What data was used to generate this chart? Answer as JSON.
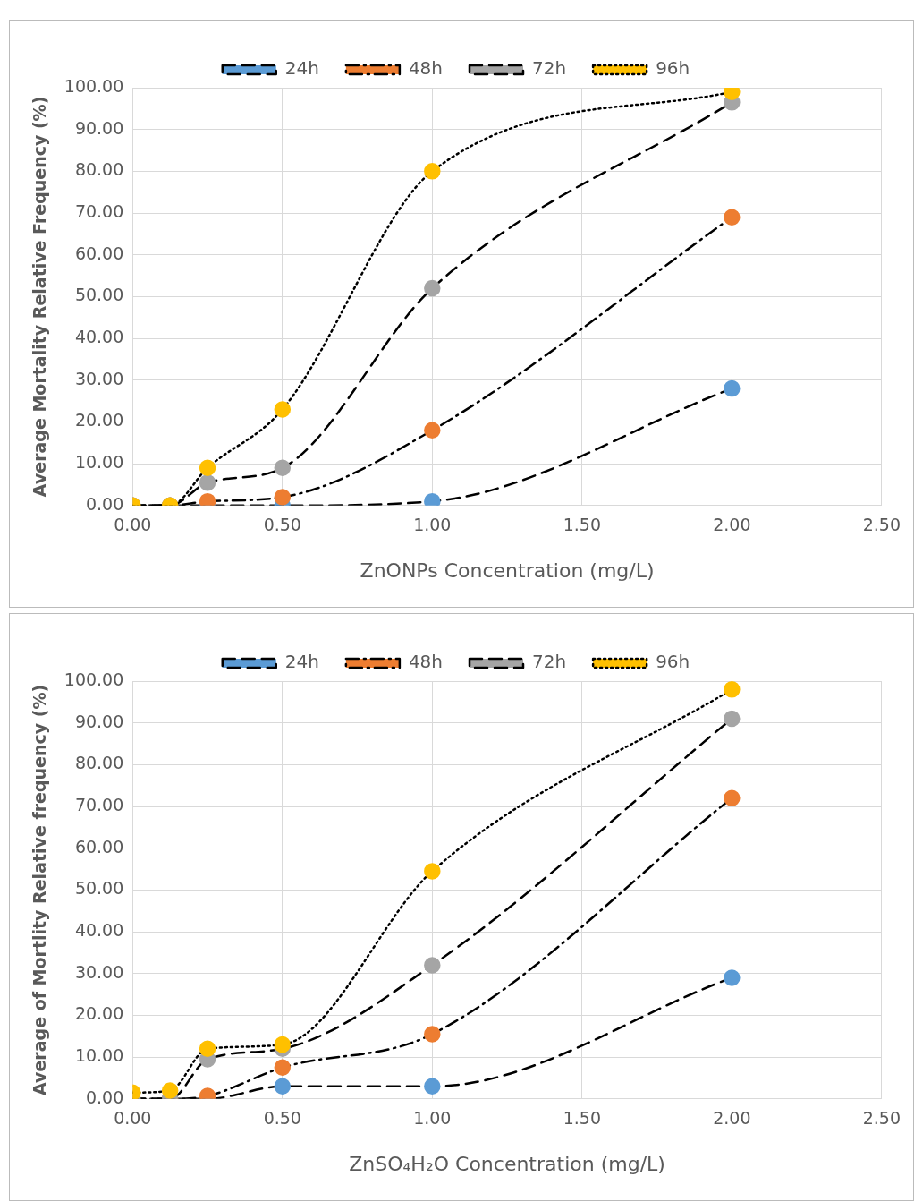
{
  "chart_data": [
    {
      "type": "line",
      "xlabel": "ZnONPs Concentration (mg/L)",
      "ylabel": "Average Mortality Relative Frequency (%)",
      "x": [
        0,
        0.125,
        0.25,
        0.5,
        1,
        2
      ],
      "xlim": [
        0,
        2.5
      ],
      "xticks": [
        {
          "value": 0,
          "label": "0.00"
        },
        {
          "value": 0.5,
          "label": "0.50"
        },
        {
          "value": 1,
          "label": "1.00"
        },
        {
          "value": 1.5,
          "label": "1.50"
        },
        {
          "value": 2,
          "label": "2.00"
        },
        {
          "value": 2.5,
          "label": "2.50"
        }
      ],
      "ylim": [
        0,
        100
      ],
      "yticks": [
        {
          "value": 0,
          "label": "0.00"
        },
        {
          "value": 10,
          "label": "10.00"
        },
        {
          "value": 20,
          "label": "20.00"
        },
        {
          "value": 30,
          "label": "30.00"
        },
        {
          "value": 40,
          "label": "40.00"
        },
        {
          "value": 50,
          "label": "50.00"
        },
        {
          "value": 60,
          "label": "60.00"
        },
        {
          "value": 70,
          "label": "70.00"
        },
        {
          "value": 80,
          "label": "80.00"
        },
        {
          "value": 90,
          "label": "90.00"
        },
        {
          "value": 100,
          "label": "100.00"
        }
      ],
      "grid": true,
      "legend": "top",
      "marker": "circle",
      "series": [
        {
          "name": "24h",
          "color": "#5b9bd5",
          "line_style": "dashed",
          "values": [
            0,
            0,
            0,
            0,
            1,
            28
          ]
        },
        {
          "name": "48h",
          "color": "#ed7d31",
          "line_style": "dashdot",
          "values": [
            0,
            0,
            1,
            2,
            18,
            69
          ]
        },
        {
          "name": "72h",
          "color": "#a5a5a5",
          "line_style": "dashed",
          "values": [
            0,
            0,
            5.5,
            9,
            52,
            96.5
          ]
        },
        {
          "name": "96h",
          "color": "#ffc000",
          "line_style": "dotted",
          "values": [
            0,
            0,
            9,
            23,
            80,
            99
          ]
        }
      ]
    },
    {
      "type": "line",
      "xlabel": "ZnSO₄H₂O Concentration (mg/L)",
      "ylabel": "Average of Mortlity Relative frequency (%)",
      "x": [
        0,
        0.125,
        0.25,
        0.5,
        1,
        2
      ],
      "xlim": [
        0,
        2.5
      ],
      "xticks": [
        {
          "value": 0,
          "label": "0.00"
        },
        {
          "value": 0.5,
          "label": "0.50"
        },
        {
          "value": 1,
          "label": "1.00"
        },
        {
          "value": 1.5,
          "label": "1.50"
        },
        {
          "value": 2,
          "label": "2.00"
        },
        {
          "value": 2.5,
          "label": "2.50"
        }
      ],
      "ylim": [
        0,
        100
      ],
      "yticks": [
        {
          "value": 0,
          "label": "0.00"
        },
        {
          "value": 10,
          "label": "10.00"
        },
        {
          "value": 20,
          "label": "20.00"
        },
        {
          "value": 30,
          "label": "30.00"
        },
        {
          "value": 40,
          "label": "40.00"
        },
        {
          "value": 50,
          "label": "50.00"
        },
        {
          "value": 60,
          "label": "60.00"
        },
        {
          "value": 70,
          "label": "70.00"
        },
        {
          "value": 80,
          "label": "80.00"
        },
        {
          "value": 90,
          "label": "90.00"
        },
        {
          "value": 100,
          "label": "100.00"
        }
      ],
      "grid": true,
      "legend": "top",
      "marker": "circle",
      "series": [
        {
          "name": "24h",
          "color": "#5b9bd5",
          "line_style": "dashed",
          "values": [
            0,
            0,
            0,
            3,
            3,
            29
          ]
        },
        {
          "name": "48h",
          "color": "#ed7d31",
          "line_style": "dashdot",
          "values": [
            0,
            0,
            0.7,
            7.5,
            15.5,
            72
          ]
        },
        {
          "name": "72h",
          "color": "#a5a5a5",
          "line_style": "dashed",
          "values": [
            0,
            0,
            9.5,
            12,
            32,
            91
          ]
        },
        {
          "name": "96h",
          "color": "#ffc000",
          "line_style": "dotted",
          "values": [
            1.5,
            2,
            12,
            13,
            54.5,
            98
          ]
        }
      ]
    }
  ]
}
